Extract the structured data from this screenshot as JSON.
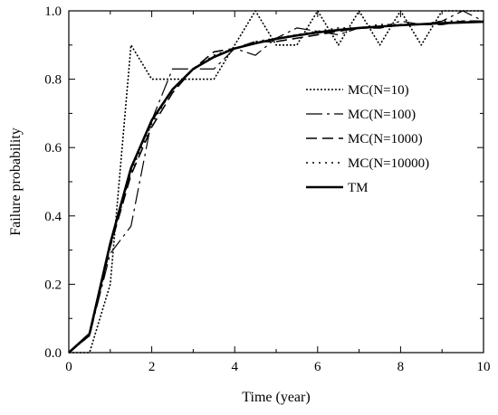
{
  "chart_data": {
    "type": "line",
    "title": "",
    "xlabel": "Time (year)",
    "ylabel": "Failure probability",
    "xlim": [
      0,
      10
    ],
    "ylim": [
      0,
      1.0
    ],
    "x_ticks": [
      "0",
      "2",
      "4",
      "6",
      "8",
      "10"
    ],
    "y_ticks": [
      "0.0",
      "0.2",
      "0.4",
      "0.6",
      "0.8",
      "1.0"
    ],
    "grid": false,
    "legend_position": "right",
    "series": [
      {
        "name": "MC(N=10)",
        "style": "dotted",
        "color": "#000000",
        "points": [
          [
            0,
            0
          ],
          [
            0.5,
            0
          ],
          [
            1,
            0.2
          ],
          [
            1.5,
            0.9
          ],
          [
            2,
            0.8
          ],
          [
            2.5,
            0.8
          ],
          [
            3,
            0.8
          ],
          [
            3.5,
            0.8
          ],
          [
            4,
            0.9
          ],
          [
            4.5,
            1.0
          ],
          [
            5,
            0.9
          ],
          [
            5.5,
            0.9
          ],
          [
            6,
            1.0
          ],
          [
            6.5,
            0.9
          ],
          [
            7,
            1.0
          ],
          [
            7.5,
            0.9
          ],
          [
            8,
            1.0
          ],
          [
            8.5,
            0.9
          ],
          [
            9,
            1.0
          ],
          [
            9.5,
            1.0
          ],
          [
            10,
            1.0
          ]
        ]
      },
      {
        "name": "MC(N=100)",
        "style": "dash-dot",
        "color": "#000000",
        "points": [
          [
            0,
            0
          ],
          [
            0.5,
            0.05
          ],
          [
            1,
            0.29
          ],
          [
            1.5,
            0.37
          ],
          [
            2,
            0.68
          ],
          [
            2.5,
            0.83
          ],
          [
            3,
            0.83
          ],
          [
            3.5,
            0.83
          ],
          [
            4,
            0.89
          ],
          [
            4.5,
            0.87
          ],
          [
            5,
            0.92
          ],
          [
            5.5,
            0.95
          ],
          [
            6,
            0.94
          ],
          [
            6.5,
            0.93
          ],
          [
            7,
            0.95
          ],
          [
            7.5,
            0.95
          ],
          [
            8,
            0.97
          ],
          [
            8.5,
            0.96
          ],
          [
            9,
            0.97
          ],
          [
            9.5,
            1.0
          ],
          [
            10,
            0.97
          ]
        ]
      },
      {
        "name": "MC(N=1000)",
        "style": "dashed",
        "color": "#000000",
        "points": [
          [
            0,
            0
          ],
          [
            0.5,
            0.05
          ],
          [
            1,
            0.31
          ],
          [
            1.5,
            0.52
          ],
          [
            2,
            0.66
          ],
          [
            2.5,
            0.76
          ],
          [
            3,
            0.83
          ],
          [
            3.5,
            0.88
          ],
          [
            4,
            0.89
          ],
          [
            4.5,
            0.91
          ],
          [
            5,
            0.91
          ],
          [
            5.5,
            0.92
          ],
          [
            6,
            0.93
          ],
          [
            6.5,
            0.94
          ],
          [
            7,
            0.95
          ],
          [
            7.5,
            0.95
          ],
          [
            8,
            0.96
          ],
          [
            8.5,
            0.96
          ],
          [
            9,
            0.96
          ],
          [
            9.5,
            0.97
          ],
          [
            10,
            0.97
          ]
        ]
      },
      {
        "name": "MC(N=10000)",
        "style": "sparse-dotted",
        "color": "#000000",
        "points": [
          [
            0,
            0
          ],
          [
            0.5,
            0.05
          ],
          [
            1,
            0.31
          ],
          [
            1.5,
            0.53
          ],
          [
            2,
            0.67
          ],
          [
            2.5,
            0.77
          ],
          [
            3,
            0.83
          ],
          [
            3.5,
            0.87
          ],
          [
            4,
            0.89
          ],
          [
            4.5,
            0.91
          ],
          [
            5,
            0.92
          ],
          [
            5.5,
            0.93
          ],
          [
            6,
            0.94
          ],
          [
            6.5,
            0.95
          ],
          [
            7,
            0.95
          ],
          [
            7.5,
            0.96
          ],
          [
            8,
            0.96
          ],
          [
            8.5,
            0.96
          ],
          [
            9,
            0.97
          ],
          [
            9.5,
            0.97
          ],
          [
            10,
            0.97
          ]
        ]
      },
      {
        "name": "TM",
        "style": "solid-thick",
        "color": "#000000",
        "points": [
          [
            0,
            0
          ],
          [
            0.5,
            0.055
          ],
          [
            1,
            0.32
          ],
          [
            1.5,
            0.54
          ],
          [
            2,
            0.68
          ],
          [
            2.5,
            0.77
          ],
          [
            3,
            0.83
          ],
          [
            3.5,
            0.865
          ],
          [
            4,
            0.89
          ],
          [
            4.5,
            0.905
          ],
          [
            5,
            0.918
          ],
          [
            5.5,
            0.928
          ],
          [
            6,
            0.937
          ],
          [
            6.5,
            0.944
          ],
          [
            7,
            0.95
          ],
          [
            7.5,
            0.954
          ],
          [
            8,
            0.958
          ],
          [
            8.5,
            0.961
          ],
          [
            9,
            0.964
          ],
          [
            9.5,
            0.966
          ],
          [
            10,
            0.968
          ]
        ]
      }
    ]
  }
}
